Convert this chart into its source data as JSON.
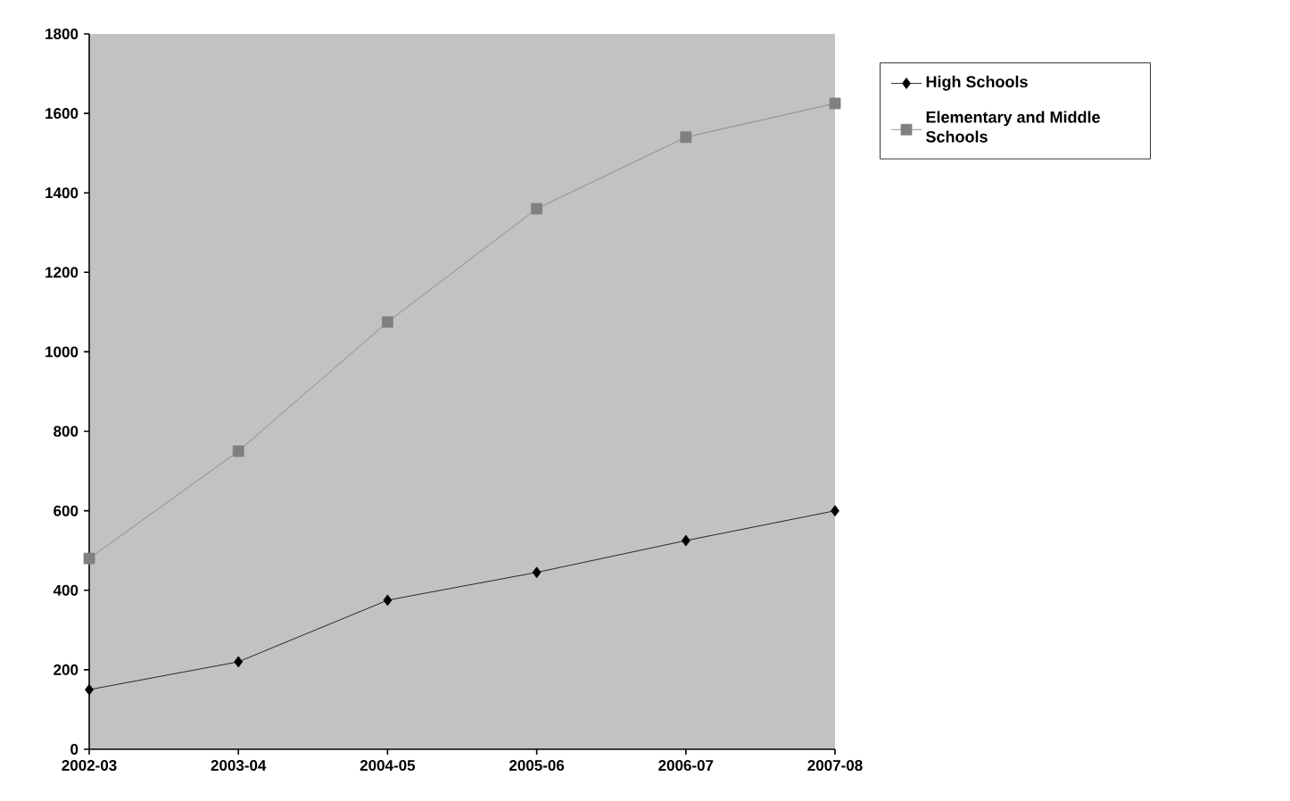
{
  "chart_data": {
    "type": "line",
    "categories": [
      "2002-03",
      "2003-04",
      "2004-05",
      "2005-06",
      "2006-07",
      "2007-08"
    ],
    "series": [
      {
        "name": "High Schools",
        "color": "#000000",
        "marker": "diamond",
        "values": [
          150,
          220,
          375,
          445,
          525,
          600
        ]
      },
      {
        "name": "Elementary and Middle Schools",
        "color": "#808080",
        "marker": "square",
        "values": [
          480,
          750,
          1075,
          1360,
          1540,
          1625
        ]
      }
    ],
    "ylim": [
      0,
      1800
    ],
    "yticks": [
      0,
      200,
      400,
      600,
      800,
      1000,
      1200,
      1400,
      1600,
      1800
    ],
    "grid": false,
    "legend": "top right",
    "line_style": "solid"
  }
}
